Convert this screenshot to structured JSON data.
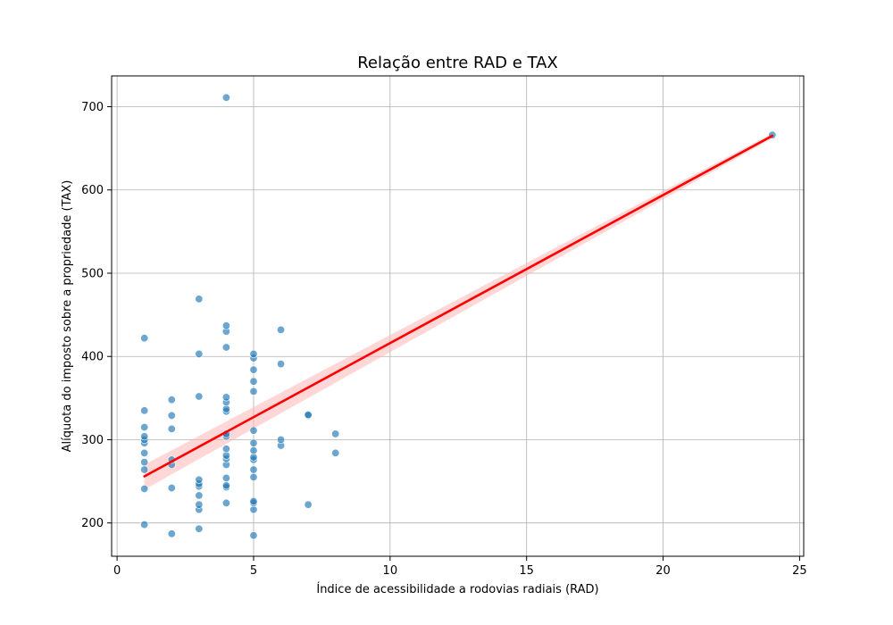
{
  "chart_data": {
    "type": "scatter",
    "title": "Relação entre RAD e TAX",
    "xlabel": "Índice de acessibilidade a rodovias radiais (RAD)",
    "ylabel": "Alíquota do imposto sobre a propriedade (TAX)",
    "xlim": [
      -0.2,
      25.15
    ],
    "ylim": [
      160,
      737
    ],
    "xticks": [
      0,
      5,
      10,
      15,
      20,
      25
    ],
    "yticks": [
      200,
      300,
      400,
      500,
      600,
      700
    ],
    "grid": true,
    "legend": "none",
    "colors": {
      "points": "#1f77b4",
      "regression_line": "#ff0000",
      "confidence_band": "#ffb6b6"
    },
    "points": [
      {
        "x": 1,
        "y": 198
      },
      {
        "x": 1,
        "y": 241
      },
      {
        "x": 1,
        "y": 264
      },
      {
        "x": 1,
        "y": 273
      },
      {
        "x": 1,
        "y": 284
      },
      {
        "x": 1,
        "y": 296
      },
      {
        "x": 1,
        "y": 300
      },
      {
        "x": 1,
        "y": 304
      },
      {
        "x": 1,
        "y": 315
      },
      {
        "x": 1,
        "y": 335
      },
      {
        "x": 1,
        "y": 422
      },
      {
        "x": 2,
        "y": 187
      },
      {
        "x": 2,
        "y": 242
      },
      {
        "x": 2,
        "y": 270
      },
      {
        "x": 2,
        "y": 276
      },
      {
        "x": 2,
        "y": 313
      },
      {
        "x": 2,
        "y": 329
      },
      {
        "x": 2,
        "y": 348
      },
      {
        "x": 3,
        "y": 193
      },
      {
        "x": 3,
        "y": 216
      },
      {
        "x": 3,
        "y": 222
      },
      {
        "x": 3,
        "y": 233
      },
      {
        "x": 3,
        "y": 244
      },
      {
        "x": 3,
        "y": 247
      },
      {
        "x": 3,
        "y": 252
      },
      {
        "x": 3,
        "y": 352
      },
      {
        "x": 3,
        "y": 403
      },
      {
        "x": 3,
        "y": 469
      },
      {
        "x": 4,
        "y": 224
      },
      {
        "x": 4,
        "y": 243
      },
      {
        "x": 4,
        "y": 245
      },
      {
        "x": 4,
        "y": 254
      },
      {
        "x": 4,
        "y": 270
      },
      {
        "x": 4,
        "y": 277
      },
      {
        "x": 4,
        "y": 281
      },
      {
        "x": 4,
        "y": 289
      },
      {
        "x": 4,
        "y": 304
      },
      {
        "x": 4,
        "y": 307
      },
      {
        "x": 4,
        "y": 334
      },
      {
        "x": 4,
        "y": 337
      },
      {
        "x": 4,
        "y": 345
      },
      {
        "x": 4,
        "y": 351
      },
      {
        "x": 4,
        "y": 411
      },
      {
        "x": 4,
        "y": 430
      },
      {
        "x": 4,
        "y": 437
      },
      {
        "x": 4,
        "y": 711
      },
      {
        "x": 5,
        "y": 185
      },
      {
        "x": 5,
        "y": 216
      },
      {
        "x": 5,
        "y": 224
      },
      {
        "x": 5,
        "y": 226
      },
      {
        "x": 5,
        "y": 255
      },
      {
        "x": 5,
        "y": 264
      },
      {
        "x": 5,
        "y": 276
      },
      {
        "x": 5,
        "y": 279
      },
      {
        "x": 5,
        "y": 287
      },
      {
        "x": 5,
        "y": 296
      },
      {
        "x": 5,
        "y": 311
      },
      {
        "x": 5,
        "y": 358
      },
      {
        "x": 5,
        "y": 370
      },
      {
        "x": 5,
        "y": 384
      },
      {
        "x": 5,
        "y": 398
      },
      {
        "x": 5,
        "y": 403
      },
      {
        "x": 6,
        "y": 293
      },
      {
        "x": 6,
        "y": 300
      },
      {
        "x": 6,
        "y": 391
      },
      {
        "x": 6,
        "y": 432
      },
      {
        "x": 7,
        "y": 222
      },
      {
        "x": 7,
        "y": 329
      },
      {
        "x": 7,
        "y": 330
      },
      {
        "x": 8,
        "y": 284
      },
      {
        "x": 8,
        "y": 307
      },
      {
        "x": 24,
        "y": 666
      }
    ],
    "regression": {
      "x": [
        1,
        24
      ],
      "y": [
        256,
        665
      ],
      "ci_lower": [
        240,
        662
      ],
      "ci_upper": [
        270,
        668
      ]
    }
  }
}
